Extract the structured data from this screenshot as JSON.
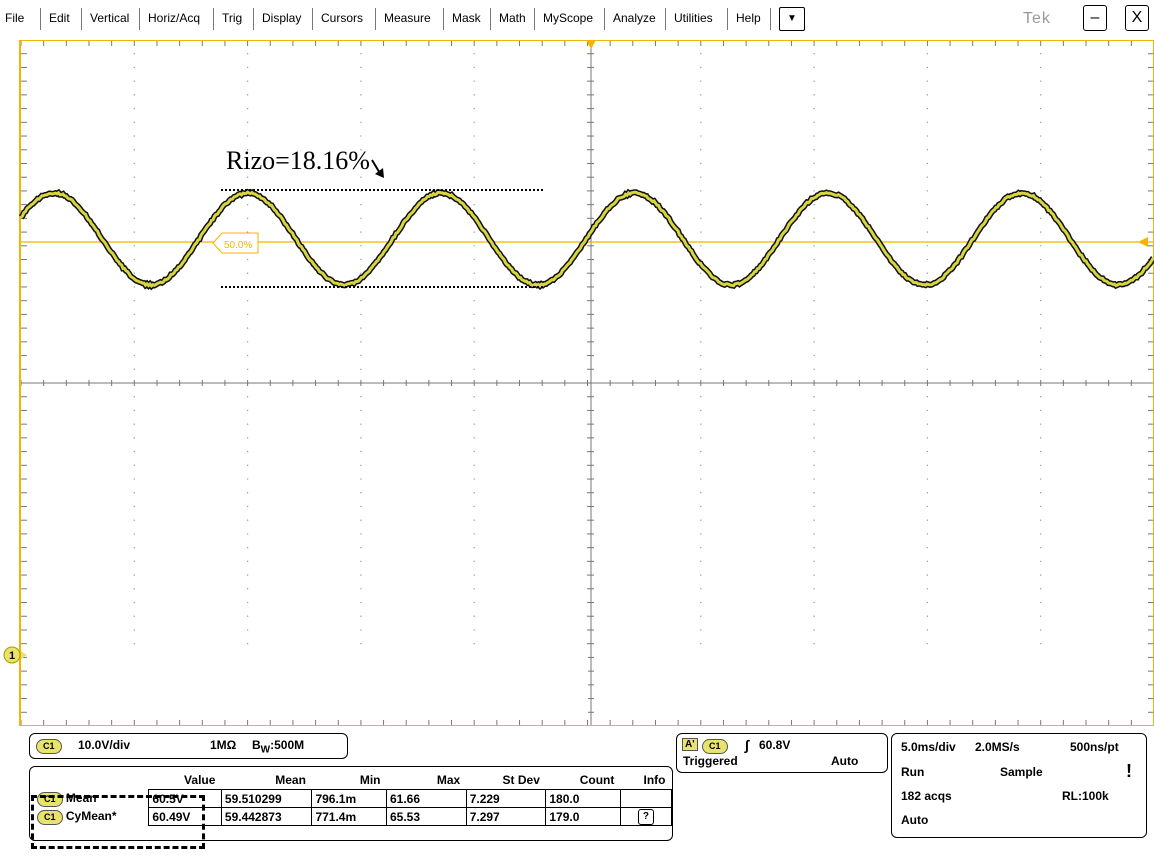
{
  "menu": {
    "items": [
      "File",
      "Edit",
      "Vertical",
      "Horiz/Acq",
      "Trig",
      "Display",
      "Cursors",
      "Measure",
      "Mask",
      "Math",
      "MyScope",
      "Analyze",
      "Utilities",
      "Help"
    ],
    "dropdown": "▼",
    "brand": "Tek",
    "minimize": "–",
    "close": "X"
  },
  "screen": {
    "annotation": "Rizo=18.16%",
    "ref_level_label": "50.0%",
    "channel_marker": "1",
    "colors": {
      "trace": "#d8d640",
      "trace_edge": "#111111",
      "trigger_level": "#f5b400",
      "grid": "#999999"
    }
  },
  "channel_panel": {
    "channel": "C1",
    "scale": "10.0V/div",
    "impedance": "1MΩ",
    "bw_prefix": "B",
    "bw_sub": "W",
    "bw_value": ":500M"
  },
  "trigger_panel": {
    "label": "A'",
    "channel": "C1",
    "slope": "∫",
    "level": "60.8V",
    "status": "Triggered",
    "mode": "Auto"
  },
  "acq_panel": {
    "timebase": "5.0ms/div",
    "sample_rate": "2.0MS/s",
    "resolution": "500ns/pt",
    "run_state": "Run",
    "acq_mode": "Sample",
    "acqs": "182 acqs",
    "record_length": "RL:100k",
    "trigger_mode": "Auto",
    "indicator": "!"
  },
  "measurements": {
    "headers": [
      "",
      "Value",
      "Mean",
      "Min",
      "Max",
      "St Dev",
      "Count",
      "Info"
    ],
    "rows": [
      {
        "channel": "C1",
        "name": "Mean",
        "value": "60.5V",
        "mean": "59.510299",
        "min": "796.1m",
        "max": "61.66",
        "stdev": "7.229",
        "count": "180.0",
        "info": ""
      },
      {
        "channel": "C1",
        "name": "CyMean*",
        "value": "60.49V",
        "mean": "59.442873",
        "min": "771.4m",
        "max": "65.53",
        "stdev": "7.297",
        "count": "179.0",
        "info": "?"
      }
    ]
  }
}
